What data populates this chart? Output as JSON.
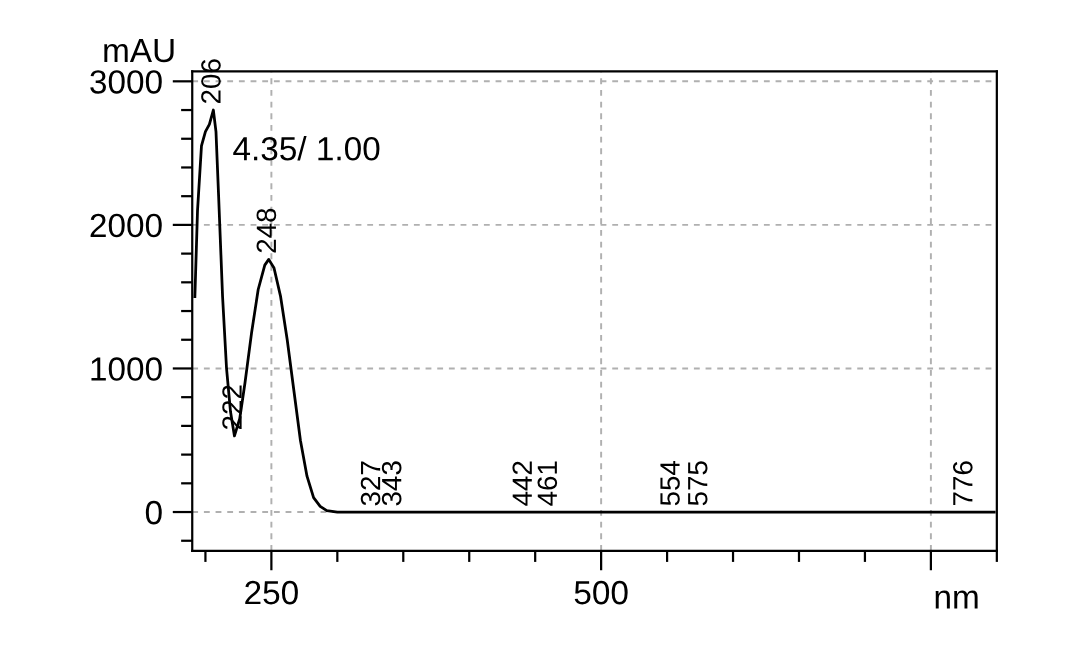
{
  "chart_data": {
    "type": "line",
    "xlabel": "nm",
    "ylabel": "mAU",
    "x": [
      192,
      194,
      197,
      200,
      203,
      206,
      208,
      210,
      213,
      216,
      219,
      222,
      226,
      230,
      235,
      240,
      245,
      248,
      252,
      257,
      262,
      267,
      272,
      277,
      282,
      287,
      292,
      300,
      350,
      400,
      500,
      600,
      700,
      798
    ],
    "series": [
      {
        "color": "#000000",
        "values": [
          1500,
          2100,
          2550,
          2650,
          2700,
          2800,
          2650,
          2200,
          1500,
          1000,
          700,
          530,
          650,
          900,
          1250,
          1550,
          1720,
          1760,
          1700,
          1500,
          1200,
          850,
          500,
          250,
          100,
          40,
          10,
          0,
          0,
          0,
          0,
          0,
          0,
          0
        ]
      }
    ],
    "xlim": [
      190,
      800
    ],
    "ylim": [
      -270,
      3070
    ],
    "xticks": [
      {
        "value": 250,
        "label": "250"
      },
      {
        "value": 500,
        "label": "500"
      },
      {
        "value": 750,
        "label": null
      }
    ],
    "yticks": [
      0,
      1000,
      2000,
      3000
    ],
    "grid": true,
    "marker": "none",
    "line_style": "solid",
    "annotations": [
      "4.35/ 1.00",
      {
        "text": "206",
        "x": 206,
        "y": 2800
      },
      {
        "text": "222",
        "x": 222,
        "y": 530
      },
      {
        "text": "248",
        "x": 248,
        "y": 1760
      },
      {
        "text": "327",
        "x": 327,
        "y": 0
      },
      {
        "text": "343",
        "x": 343,
        "y": 0
      },
      {
        "text": "442",
        "x": 442,
        "y": 0
      },
      {
        "text": "461",
        "x": 461,
        "y": 0
      },
      {
        "text": "554",
        "x": 554,
        "y": 0
      },
      {
        "text": "575",
        "x": 575,
        "y": 0
      },
      {
        "text": "776",
        "x": 776,
        "y": 0
      }
    ]
  }
}
